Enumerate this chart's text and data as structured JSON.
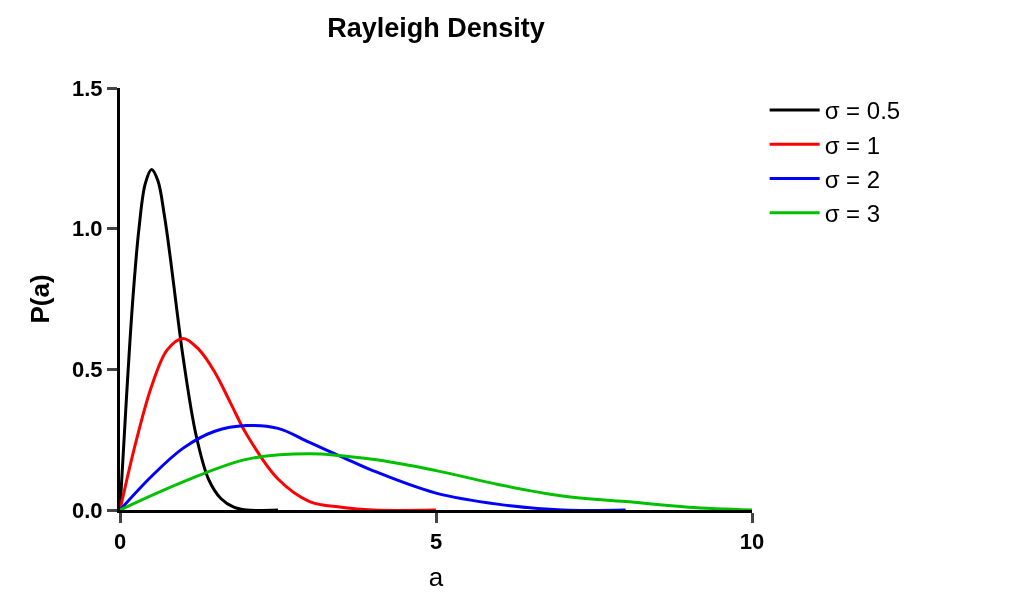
{
  "chart_data": {
    "type": "line",
    "title": "Rayleigh Density",
    "xlabel": "a",
    "ylabel": "P(a)",
    "xlim": [
      0,
      10
    ],
    "xticks": [
      0,
      5,
      10
    ],
    "ylim": [
      0,
      1.5
    ],
    "yticks": [
      {
        "value": 0,
        "label": "0.0"
      },
      0.5,
      {
        "value": 1,
        "label": "1.0"
      },
      1.5
    ],
    "legend": "top right",
    "marker": "none",
    "line_style": "solid",
    "series": [
      {
        "name": "σ = 0.5",
        "color": "#000000",
        "x": [
          0,
          0.1,
          0.2,
          0.3,
          0.4,
          0.5,
          0.6,
          0.7,
          0.8,
          0.9,
          1.0,
          1.2,
          1.4,
          1.6,
          1.8,
          2.0,
          2.5
        ],
        "values": [
          0,
          0.39,
          0.74,
          1.0,
          1.16,
          1.21,
          1.17,
          1.05,
          0.89,
          0.71,
          0.54,
          0.27,
          0.11,
          0.04,
          0.01,
          0.0,
          0
        ]
      },
      {
        "name": "σ = 1",
        "color": "#ff0000",
        "x": [
          0,
          0.25,
          0.5,
          0.75,
          1,
          1.25,
          1.5,
          1.75,
          2,
          2.5,
          3,
          3.5,
          4,
          5
        ],
        "values": [
          0,
          0.24,
          0.44,
          0.57,
          0.61,
          0.57,
          0.49,
          0.38,
          0.27,
          0.11,
          0.03,
          0.01,
          0,
          0
        ]
      },
      {
        "name": "σ = 2",
        "color": "#0000ff",
        "x": [
          0,
          0.5,
          1,
          1.5,
          2,
          2.5,
          3,
          3.5,
          4,
          5,
          6,
          7,
          8
        ],
        "values": [
          0,
          0.12,
          0.22,
          0.28,
          0.3,
          0.29,
          0.24,
          0.19,
          0.14,
          0.06,
          0.02,
          0.0,
          0
        ]
      },
      {
        "name": "σ = 3",
        "color": "#00c000",
        "x": [
          0,
          1,
          2,
          3,
          4,
          5,
          6,
          7,
          8,
          9,
          10
        ],
        "values": [
          0,
          0.1,
          0.18,
          0.2,
          0.18,
          0.14,
          0.09,
          0.05,
          0.03,
          0.01,
          0.0
        ]
      }
    ]
  }
}
